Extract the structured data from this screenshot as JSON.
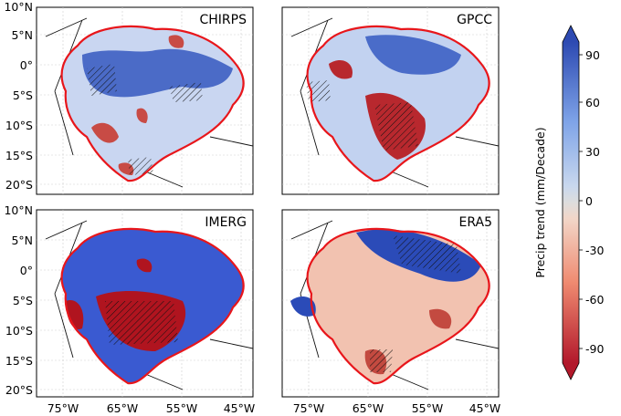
{
  "figure": {
    "description_type": "four-panel precipitation trend maps",
    "colorbar_label": "Precip trend (mm/Decade)",
    "colorbar_ticks": [
      "90",
      "60",
      "30",
      "0",
      "-30",
      "-60",
      "-90"
    ],
    "colorbar_range": [
      -100,
      100
    ],
    "colors": {
      "strong_positive": "#2b4bb8",
      "positive": "#8fb1f0",
      "neutral": "#dedede",
      "negative": "#f0a088",
      "strong_negative": "#b71c2b",
      "boundary": "#e8161b"
    }
  },
  "panels": [
    {
      "title": "CHIRPS"
    },
    {
      "title": "GPCC"
    },
    {
      "title": "IMERG"
    },
    {
      "title": "ERA5"
    }
  ],
  "axes": {
    "lat_ticks_top": [
      "10°N",
      "5°N",
      "0°",
      "5°S",
      "10°S",
      "15°S",
      "20°S"
    ],
    "lat_ticks_bottom": [
      "10°N",
      "5°N",
      "0°",
      "5°S",
      "10°S",
      "15°S",
      "20°S"
    ],
    "lon_ticks_left": [
      "75°W",
      "65°W",
      "55°W",
      "45°W"
    ],
    "lon_ticks_right": [
      "75°W",
      "65°W",
      "55°W",
      "45°W"
    ]
  }
}
